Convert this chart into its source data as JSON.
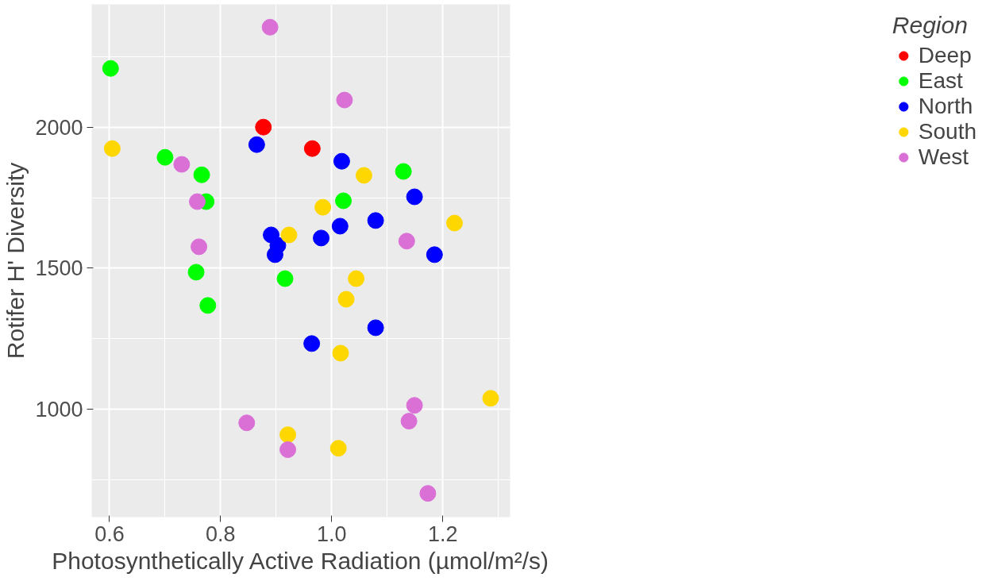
{
  "chart_data": {
    "type": "scatter",
    "xlabel": "Photosynthetically Active Radiation (µmol/m²/s)",
    "ylabel": "Rotifer H' Diversity",
    "legend_title": "Region",
    "legend": "right",
    "grid": true,
    "marker": "circle",
    "xlim": [
      0.568,
      1.321
    ],
    "ylim": [
      618,
      2435
    ],
    "xticks": [
      {
        "value": 0.6,
        "label": "0.6"
      },
      {
        "value": 0.8,
        "label": "0.8"
      },
      {
        "value": 1.0,
        "label": "1.0"
      },
      {
        "value": 1.2,
        "label": "1.2"
      }
    ],
    "yticks": [
      1000,
      1500,
      2000
    ],
    "series": [
      {
        "name": "Deep",
        "color": "#ff0000",
        "x": [
          0.877,
          0.965
        ],
        "values": [
          2000,
          1924
        ]
      },
      {
        "name": "East",
        "color": "#00ff00",
        "x": [
          0.602,
          0.7,
          0.766,
          0.774,
          0.756,
          0.777,
          0.916,
          1.021,
          1.129
        ],
        "values": [
          2208,
          1893,
          1831,
          1736,
          1486,
          1368,
          1463,
          1739,
          1843
        ]
      },
      {
        "name": "North",
        "color": "#0000ff",
        "x": [
          0.865,
          0.891,
          0.903,
          0.898,
          0.981,
          1.018,
          1.015,
          0.964,
          1.079,
          1.079,
          1.149,
          1.185
        ],
        "values": [
          1938,
          1618,
          1581,
          1548,
          1607,
          1879,
          1649,
          1233,
          1669,
          1289,
          1753,
          1548
        ]
      },
      {
        "name": "South",
        "color": "#ffd700",
        "x": [
          0.605,
          0.923,
          0.984,
          1.058,
          1.044,
          1.026,
          1.016,
          0.921,
          1.012,
          1.221,
          1.286
        ],
        "values": [
          1924,
          1618,
          1716,
          1829,
          1463,
          1390,
          1199,
          910,
          862,
          1660,
          1039
        ]
      },
      {
        "name": "West",
        "color": "#da70d6",
        "x": [
          0.889,
          1.023,
          0.73,
          0.758,
          0.761,
          1.135,
          0.847,
          0.921,
          1.149,
          1.139,
          1.173
        ],
        "values": [
          2354,
          2096,
          1868,
          1736,
          1576,
          1596,
          952,
          857,
          1014,
          958,
          702
        ]
      }
    ]
  }
}
